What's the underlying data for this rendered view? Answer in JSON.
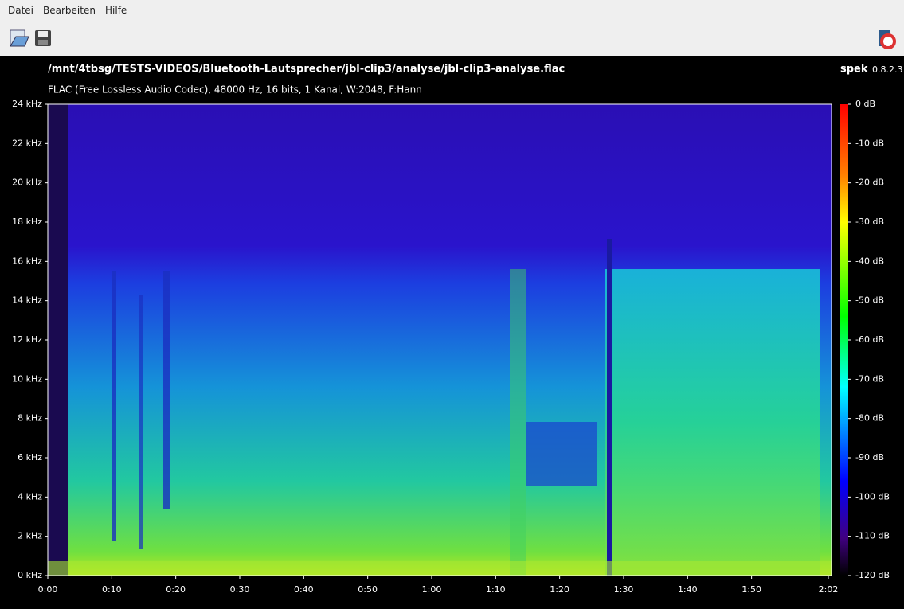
{
  "menu": [
    "Datei",
    "Bearbeiten",
    "Hilfe"
  ],
  "header": {
    "file": "/mnt/4tbsg/TESTS-VIDEOS/Bluetooth-Lautsprecher/jbl-clip3/analyse/jbl-clip3-analyse.flac",
    "app": "spek",
    "version": "0.8.2.3",
    "info": "FLAC (Free Lossless Audio Codec), 48000 Hz, 16 bits, 1 Kanal, W:2048, F:Hann"
  },
  "spectrogram": {
    "y_ticks": [
      "24 kHz",
      "22 kHz",
      "20 kHz",
      "18 kHz",
      "16 kHz",
      "14 kHz",
      "12 kHz",
      "10 kHz",
      "8 kHz",
      "6 kHz",
      "4 kHz",
      "2 kHz",
      "0 kHz"
    ],
    "x_ticks": [
      "0:00",
      "0:10",
      "0:20",
      "0:30",
      "0:40",
      "0:50",
      "1:00",
      "1:10",
      "1:20",
      "1:30",
      "1:40",
      "1:50",
      "2:02"
    ],
    "db_ticks": [
      "0 dB",
      "-10 dB",
      "-20 dB",
      "-30 dB",
      "-40 dB",
      "-50 dB",
      "-60 dB",
      "-70 dB",
      "-80 dB",
      "-90 dB",
      "-100 dB",
      "-110 dB",
      "-120 dB"
    ]
  }
}
